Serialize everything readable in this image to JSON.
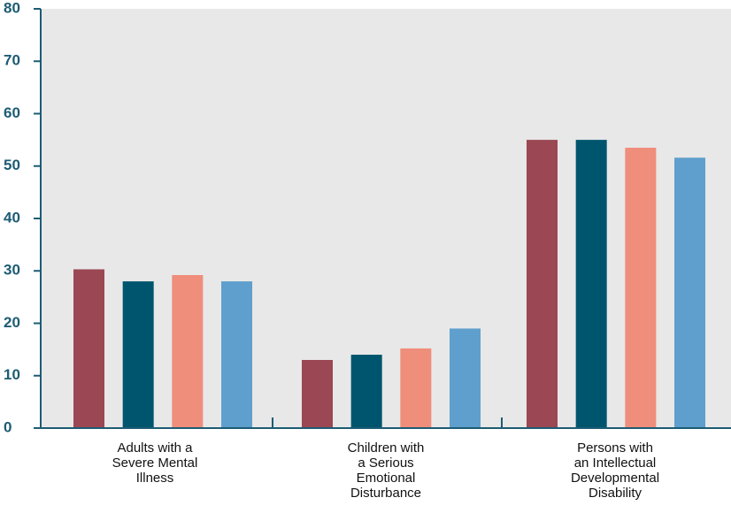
{
  "chart_data": {
    "type": "bar",
    "title": "",
    "xlabel": "",
    "ylabel": "",
    "ylim": [
      0,
      80
    ],
    "yticks": [
      0,
      10,
      20,
      30,
      40,
      50,
      60,
      70,
      80
    ],
    "categories": [
      "Adults with a Severe Mental Illness",
      "Children with a Serious Emotional Disturbance",
      "Persons with an Intellectual Developmental Disability"
    ],
    "category_lines": [
      [
        "Adults with a",
        "Severe Mental",
        "Illness"
      ],
      [
        "Children with",
        "a Serious",
        "Emotional",
        "Disturbance"
      ],
      [
        "Persons with",
        "an Intellectual",
        "Developmental",
        "Disability"
      ]
    ],
    "series": [
      {
        "color": "#9b4754",
        "values": [
          30.3,
          13.0,
          55.0
        ]
      },
      {
        "color": "#00556e",
        "values": [
          28.0,
          14.0,
          55.0
        ]
      },
      {
        "color": "#ef8e7b",
        "values": [
          29.2,
          15.2,
          53.5
        ]
      },
      {
        "color": "#5f9fcd",
        "values": [
          28.0,
          19.0,
          51.6
        ]
      }
    ],
    "grid": false,
    "legend": "none",
    "colors": {
      "plot_background": "#e8e8e8",
      "axis": "#1d5c74"
    }
  }
}
